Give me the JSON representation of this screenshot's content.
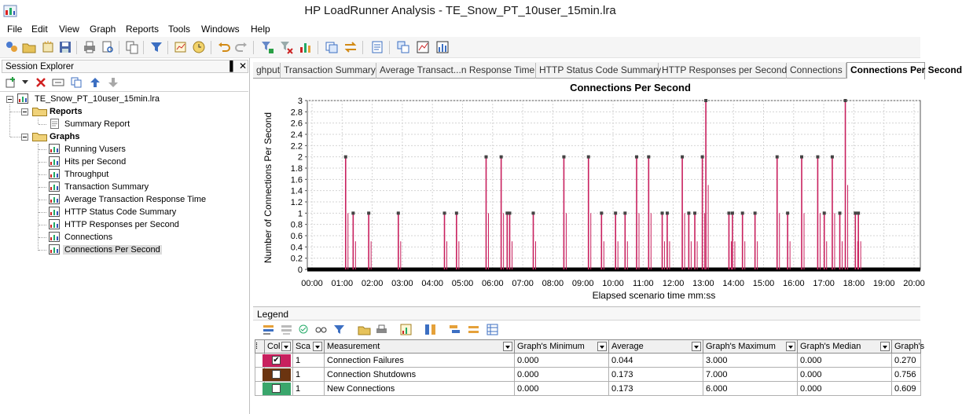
{
  "window": {
    "title": "HP LoadRunner Analysis - TE_Snow_PT_10user_15min.lra"
  },
  "menu": [
    "File",
    "Edit",
    "View",
    "Graph",
    "Reports",
    "Tools",
    "Windows",
    "Help"
  ],
  "session_explorer": {
    "title": "Session Explorer",
    "pin": "▐",
    "close": "✕",
    "root": "TE_Snow_PT_10user_15min.lra",
    "reports_label": "Reports",
    "reports": [
      "Summary Report"
    ],
    "graphs_label": "Graphs",
    "graphs": [
      "Running Vusers",
      "Hits per Second",
      "Throughput",
      "Transaction Summary",
      "Average Transaction Response Time",
      "HTTP Status Code Summary",
      "HTTP Responses per Second",
      "Connections",
      "Connections Per Second"
    ],
    "selected": "Connections Per Second"
  },
  "tabs": [
    "ghput",
    "Transaction Summary",
    "Average Transact...n Response Time",
    "HTTP Status Code Summary",
    "HTTP Responses per Second",
    "Connections",
    "Connections Per Second"
  ],
  "active_tab": "Connections Per Second",
  "chart_data": {
    "type": "line",
    "title": "Connections Per Second",
    "xlabel": "Elapsed scenario time mm:ss",
    "ylabel": "Number of Connections Per Second",
    "ylim": [
      0,
      3
    ],
    "xlim_minutes": [
      0,
      20
    ],
    "x_ticks": [
      "00:00",
      "01:00",
      "02:00",
      "03:00",
      "04:00",
      "05:00",
      "06:00",
      "07:00",
      "08:00",
      "09:00",
      "10:00",
      "11:00",
      "12:00",
      "13:00",
      "14:00",
      "15:00",
      "16:00",
      "17:00",
      "18:00",
      "19:00",
      "20:00"
    ],
    "y_ticks": [
      "0",
      "0.2",
      "0.4",
      "0.6",
      "0.8",
      "1",
      "1.2",
      "1.4",
      "1.6",
      "1.8",
      "2",
      "2.2",
      "2.4",
      "2.6",
      "2.8",
      "3"
    ],
    "grid": true,
    "series": [
      {
        "name": "Connection Failures",
        "color": "#c8205e",
        "points": [
          {
            "x": "01:07",
            "y": 2
          },
          {
            "x": "01:22",
            "y": 1
          },
          {
            "x": "01:53",
            "y": 1
          },
          {
            "x": "02:52",
            "y": 1
          },
          {
            "x": "04:24",
            "y": 1
          },
          {
            "x": "04:48",
            "y": 1
          },
          {
            "x": "05:47",
            "y": 2
          },
          {
            "x": "06:17",
            "y": 2
          },
          {
            "x": "06:29",
            "y": 1
          },
          {
            "x": "06:34",
            "y": 1
          },
          {
            "x": "07:21",
            "y": 1
          },
          {
            "x": "08:22",
            "y": 2
          },
          {
            "x": "09:11",
            "y": 2
          },
          {
            "x": "09:37",
            "y": 1
          },
          {
            "x": "10:05",
            "y": 1
          },
          {
            "x": "10:24",
            "y": 1
          },
          {
            "x": "10:47",
            "y": 2
          },
          {
            "x": "11:11",
            "y": 2
          },
          {
            "x": "11:38",
            "y": 1
          },
          {
            "x": "11:48",
            "y": 1
          },
          {
            "x": "12:18",
            "y": 2
          },
          {
            "x": "12:31",
            "y": 1
          },
          {
            "x": "12:43",
            "y": 1
          },
          {
            "x": "12:58",
            "y": 2
          },
          {
            "x": "13:05",
            "y": 3
          },
          {
            "x": "13:51",
            "y": 1
          },
          {
            "x": "13:58",
            "y": 1
          },
          {
            "x": "14:18",
            "y": 1
          },
          {
            "x": "14:43",
            "y": 1
          },
          {
            "x": "15:27",
            "y": 2
          },
          {
            "x": "15:48",
            "y": 1
          },
          {
            "x": "16:16",
            "y": 2
          },
          {
            "x": "16:48",
            "y": 2
          },
          {
            "x": "17:01",
            "y": 1
          },
          {
            "x": "17:17",
            "y": 2
          },
          {
            "x": "17:32",
            "y": 1
          },
          {
            "x": "17:43",
            "y": 3
          },
          {
            "x": "18:03",
            "y": 1
          },
          {
            "x": "18:09",
            "y": 1
          }
        ]
      }
    ]
  },
  "legend": {
    "title": "Legend",
    "columns": [
      "Col",
      "Sca",
      "Measurement",
      "Graph's Minimum",
      "Average",
      "Graph's Maximum",
      "Graph's Median",
      "Graph's"
    ],
    "rows": [
      {
        "color": "#c8205e",
        "checked": true,
        "scale": "1",
        "measurement": "Connection Failures",
        "min": "0.000",
        "avg": "0.044",
        "max": "3.000",
        "median": "0.000",
        "sd": "0.270"
      },
      {
        "color": "#6b3410",
        "checked": false,
        "scale": "1",
        "measurement": "Connection Shutdowns",
        "min": "0.000",
        "avg": "0.173",
        "max": "7.000",
        "median": "0.000",
        "sd": "0.756"
      },
      {
        "color": "#3aa66c",
        "checked": false,
        "scale": "1",
        "measurement": "New Connections",
        "min": "0.000",
        "avg": "0.173",
        "max": "6.000",
        "median": "0.000",
        "sd": "0.609"
      }
    ]
  }
}
